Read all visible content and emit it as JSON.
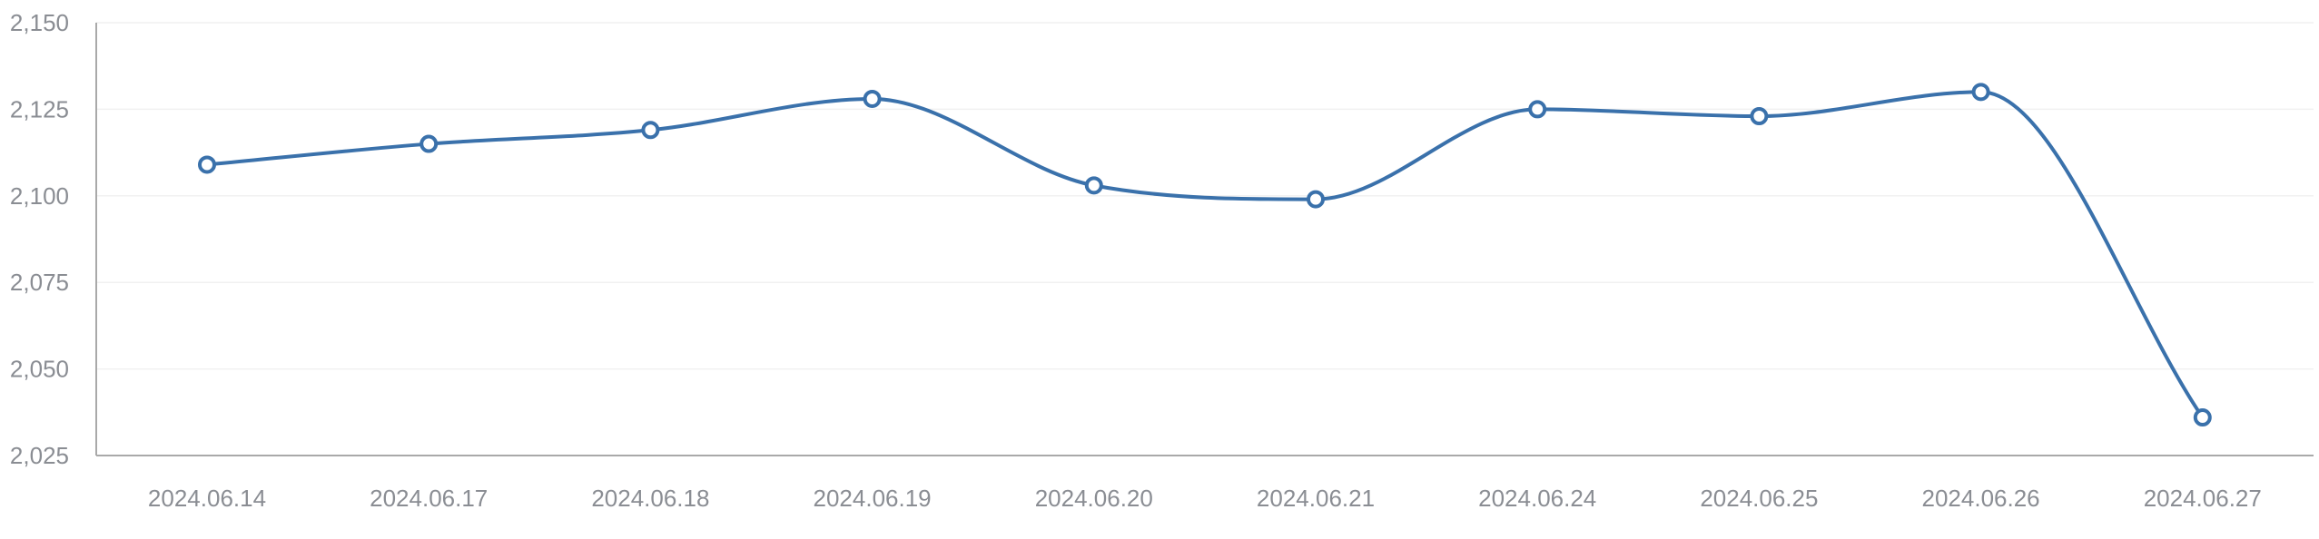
{
  "chart_data": {
    "type": "line",
    "title": "",
    "xlabel": "",
    "ylabel": "",
    "categories": [
      "2024.06.14",
      "2024.06.17",
      "2024.06.18",
      "2024.06.19",
      "2024.06.20",
      "2024.06.21",
      "2024.06.24",
      "2024.06.25",
      "2024.06.26",
      "2024.06.27"
    ],
    "series": [
      {
        "values": [
          2109,
          2115,
          2119,
          2128,
          2103,
          2099,
          2125,
          2123,
          2130,
          2036
        ]
      }
    ],
    "ylim": [
      2025,
      2150
    ],
    "yticks": [
      2025,
      2050,
      2075,
      2100,
      2125,
      2150
    ],
    "ytick_labels": [
      "2,025",
      "2,050",
      "2,075",
      "2,100",
      "2,125",
      "2,150"
    ],
    "grid": true,
    "smooth": true,
    "colors": {
      "line": "#3a71ab",
      "axis": "#a9a9a9",
      "grid": "#f1f1f1",
      "label": "#8a8d93"
    }
  }
}
